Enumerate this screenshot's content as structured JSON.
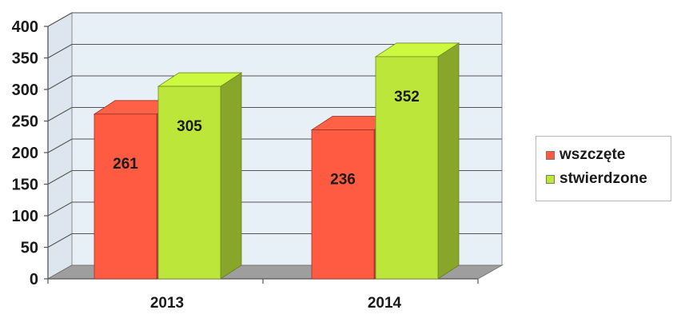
{
  "chart_data": {
    "type": "bar",
    "categories": [
      "2013",
      "2014"
    ],
    "series": [
      {
        "name": "wszczęte",
        "values": [
          261,
          236
        ],
        "color": "#ff5a42"
      },
      {
        "name": "stwierdzone",
        "values": [
          305,
          352
        ],
        "color": "#bde63a"
      }
    ],
    "title": "",
    "xlabel": "",
    "ylabel": "",
    "ylim": [
      0,
      400
    ],
    "yticks": [
      0,
      50,
      100,
      150,
      200,
      250,
      300,
      350,
      400
    ],
    "grid": true,
    "legend_position": "right",
    "three_d": true
  }
}
